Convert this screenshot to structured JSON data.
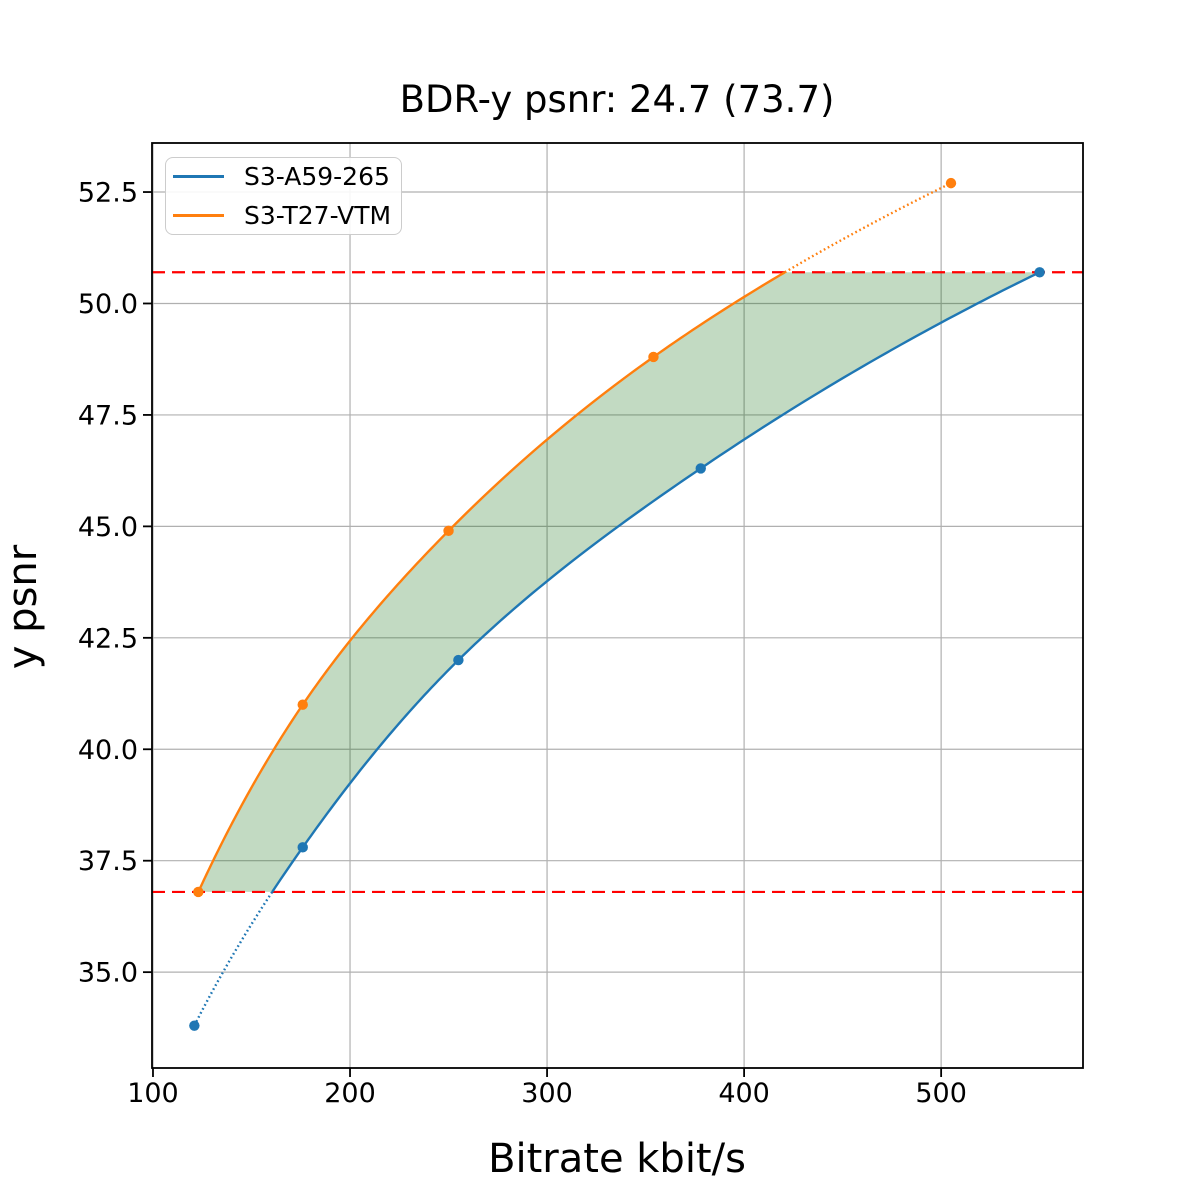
{
  "chart_data": {
    "type": "line",
    "title": "BDR-y psnr: 24.7 (73.7)",
    "xlabel": "Bitrate kbit/s",
    "ylabel": "y psnr",
    "xlim": [
      99.5,
      572
    ],
    "ylim": [
      32.85,
      53.6
    ],
    "grid": true,
    "grid_color": "#b0b0b0",
    "axis_color": "#000000",
    "x_ticks": [
      {
        "value": 100,
        "label": "100"
      },
      {
        "value": 200,
        "label": "200"
      },
      {
        "value": 300,
        "label": "300"
      },
      {
        "value": 400,
        "label": "400"
      },
      {
        "value": 500,
        "label": "500"
      }
    ],
    "y_ticks": [
      {
        "value": 35.0,
        "label": "35.0"
      },
      {
        "value": 37.5,
        "label": "37.5"
      },
      {
        "value": 40.0,
        "label": "40.0"
      },
      {
        "value": 42.5,
        "label": "42.5"
      },
      {
        "value": 45.0,
        "label": "45.0"
      },
      {
        "value": 47.5,
        "label": "47.5"
      },
      {
        "value": 50.0,
        "label": "50.0"
      },
      {
        "value": 52.5,
        "label": "52.5"
      }
    ],
    "series": [
      {
        "name": "S3-A59-265",
        "color": "#1f77b4",
        "marker": "circle",
        "points": [
          [
            121,
            33.8
          ],
          [
            176,
            37.8
          ],
          [
            255,
            42.0
          ],
          [
            378,
            46.3
          ],
          [
            550,
            50.7
          ]
        ],
        "dotted_below_y": 36.8
      },
      {
        "name": "S3-T27-VTM",
        "color": "#ff7f0e",
        "marker": "circle",
        "points": [
          [
            123,
            36.8
          ],
          [
            176,
            41.0
          ],
          [
            250,
            44.9
          ],
          [
            354,
            48.8
          ],
          [
            505,
            52.7
          ]
        ],
        "dotted_above_y": 50.7
      }
    ],
    "hlines": [
      {
        "y": 36.8,
        "color": "#ff0000",
        "style": "dashed",
        "role": "overlap-lower-bound"
      },
      {
        "y": 50.7,
        "color": "#ff0000",
        "style": "dashed",
        "role": "overlap-upper-bound"
      }
    ],
    "fill_between": {
      "lower_y": 36.8,
      "upper_y": 50.7,
      "color": "#006400",
      "alpha": 0.24,
      "role": "bd-rate-gap-area"
    },
    "legend": {
      "position": "upper-left",
      "entries": [
        "S3-A59-265",
        "S3-T27-VTM"
      ]
    }
  }
}
